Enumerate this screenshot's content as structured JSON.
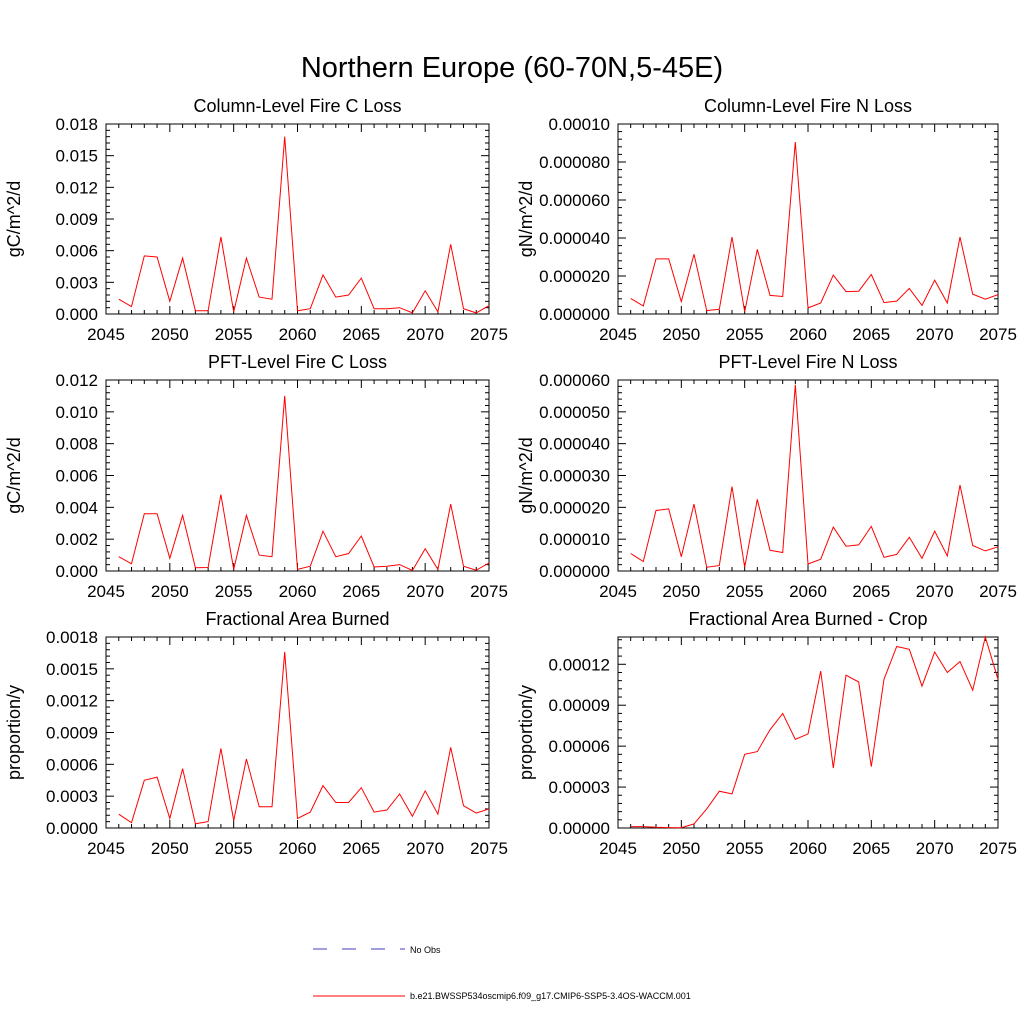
{
  "figure": {
    "title": "Northern Europe (60-70N,5-45E)"
  },
  "legend": {
    "entries": [
      {
        "label": "No Obs",
        "color": "#3f3fbf",
        "style": "dashed"
      },
      {
        "label": "b.e21.BWSSP534oscmip6.f09_g17.CMIP6-SSP5-3.4OS-WACCM.001",
        "color": "#ff0000",
        "style": "solid"
      }
    ]
  },
  "chart_data": [
    {
      "type": "line",
      "title": "Column-Level Fire C Loss",
      "ylabel": "gC/m^2/d",
      "xlim": [
        2045,
        2075
      ],
      "ylim": [
        0,
        0.018
      ],
      "xticks": [
        "2045",
        "2050",
        "2055",
        "2060",
        "2065",
        "2070",
        "2075"
      ],
      "yticks": [
        "0.000",
        "0.003",
        "0.006",
        "0.009",
        "0.012",
        "0.015",
        "0.018"
      ],
      "series": [
        {
          "color": "#ff0000",
          "x": [
            2046,
            2047,
            2048,
            2049,
            2050,
            2051,
            2052,
            2053,
            2054,
            2055,
            2056,
            2057,
            2058,
            2059,
            2060,
            2061,
            2062,
            2063,
            2064,
            2065,
            2066,
            2067,
            2068,
            2069,
            2070,
            2071,
            2072,
            2073,
            2074,
            2075
          ],
          "y": [
            0.0014,
            0.0007,
            0.0055,
            0.0054,
            0.0012,
            0.0053,
            0.0003,
            0.0003,
            0.0073,
            0.0002,
            0.0053,
            0.0016,
            0.0014,
            0.0168,
            0.0003,
            0.0005,
            0.0037,
            0.0016,
            0.0018,
            0.0034,
            0.0005,
            0.0005,
            0.0006,
            0.0001,
            0.0022,
            0.0002,
            0.0066,
            0.0005,
            0.0001,
            0.0008
          ]
        }
      ]
    },
    {
      "type": "line",
      "title": "Column-Level Fire N Loss",
      "ylabel": "gN/m^2/d",
      "xlim": [
        2045,
        2075
      ],
      "ylim": [
        0,
        0.0001
      ],
      "xticks": [
        "2045",
        "2050",
        "2055",
        "2060",
        "2065",
        "2070",
        "2075"
      ],
      "yticks": [
        "0.000000",
        "0.000020",
        "0.000040",
        "0.000060",
        "0.000080",
        "0.00010"
      ],
      "series": [
        {
          "color": "#ff0000",
          "x": [
            2046,
            2047,
            2048,
            2049,
            2050,
            2051,
            2052,
            2053,
            2054,
            2055,
            2056,
            2057,
            2058,
            2059,
            2060,
            2061,
            2062,
            2063,
            2064,
            2065,
            2066,
            2067,
            2068,
            2069,
            2070,
            2071,
            2072,
            2073,
            2074,
            2075
          ],
          "y": [
            8.2e-06,
            4.2e-06,
            2.9e-05,
            2.9e-05,
            6.5e-06,
            3.15e-05,
            1.8e-06,
            2.5e-06,
            4.05e-05,
            1.2e-06,
            3.4e-05,
            9.8e-06,
            9.2e-06,
            9.05e-05,
            3.2e-06,
            5.8e-06,
            2.05e-05,
            1.18e-05,
            1.2e-05,
            2.08e-05,
            6e-06,
            6.8e-06,
            1.35e-05,
            4.5e-06,
            1.78e-05,
            5.8e-06,
            4.05e-05,
            1.05e-05,
            7.8e-06,
            1.02e-05
          ]
        }
      ]
    },
    {
      "type": "line",
      "title": "PFT-Level Fire C Loss",
      "ylabel": "gC/m^2/d",
      "xlim": [
        2045,
        2075
      ],
      "ylim": [
        0,
        0.012
      ],
      "xticks": [
        "2045",
        "2050",
        "2055",
        "2060",
        "2065",
        "2070",
        "2075"
      ],
      "yticks": [
        "0.000",
        "0.002",
        "0.004",
        "0.006",
        "0.008",
        "0.010",
        "0.012"
      ],
      "series": [
        {
          "color": "#ff0000",
          "x": [
            2046,
            2047,
            2048,
            2049,
            2050,
            2051,
            2052,
            2053,
            2054,
            2055,
            2056,
            2057,
            2058,
            2059,
            2060,
            2061,
            2062,
            2063,
            2064,
            2065,
            2066,
            2067,
            2068,
            2069,
            2070,
            2071,
            2072,
            2073,
            2074,
            2075
          ],
          "y": [
            0.0009,
            0.00045,
            0.0036,
            0.0036,
            0.0008,
            0.0035,
            0.0002,
            0.00022,
            0.0048,
            0.0001,
            0.0035,
            0.001,
            0.0009,
            0.011,
            0.0001,
            0.0003,
            0.0025,
            0.0009,
            0.0011,
            0.0022,
            0.00025,
            0.0003,
            0.0004,
            3e-05,
            0.0014,
            0.0001,
            0.0042,
            0.0003,
            5e-05,
            0.0005
          ]
        }
      ]
    },
    {
      "type": "line",
      "title": "PFT-Level Fire N Loss",
      "ylabel": "gN/m^2/d",
      "xlim": [
        2045,
        2075
      ],
      "ylim": [
        0,
        6e-05
      ],
      "xticks": [
        "2045",
        "2050",
        "2055",
        "2060",
        "2065",
        "2070",
        "2075"
      ],
      "yticks": [
        "0.000000",
        "0.000010",
        "0.000020",
        "0.000030",
        "0.000040",
        "0.000050",
        "0.000060"
      ],
      "series": [
        {
          "color": "#ff0000",
          "x": [
            2046,
            2047,
            2048,
            2049,
            2050,
            2051,
            2052,
            2053,
            2054,
            2055,
            2056,
            2057,
            2058,
            2059,
            2060,
            2061,
            2062,
            2063,
            2064,
            2065,
            2066,
            2067,
            2068,
            2069,
            2070,
            2071,
            2072,
            2073,
            2074,
            2075
          ],
          "y": [
            5.5e-06,
            3e-06,
            1.9e-05,
            1.95e-05,
            4.5e-06,
            2.1e-05,
            1.2e-06,
            1.7e-06,
            2.65e-05,
            1.2e-06,
            2.25e-05,
            6.5e-06,
            5.8e-06,
            5.85e-05,
            2.2e-06,
            3.7e-06,
            1.38e-05,
            7.8e-06,
            8.2e-06,
            1.4e-05,
            4.3e-06,
            5.2e-06,
            1.06e-05,
            4e-06,
            1.25e-05,
            4.7e-06,
            2.7e-05,
            8e-06,
            6.3e-06,
            7.6e-06
          ]
        }
      ]
    },
    {
      "type": "line",
      "title": "Fractional Area Burned",
      "ylabel": "proportion/y",
      "xlim": [
        2045,
        2075
      ],
      "ylim": [
        0,
        0.0018
      ],
      "xticks": [
        "2045",
        "2050",
        "2055",
        "2060",
        "2065",
        "2070",
        "2075"
      ],
      "yticks": [
        "0.0000",
        "0.0003",
        "0.0006",
        "0.0009",
        "0.0012",
        "0.0015",
        "0.0018"
      ],
      "series": [
        {
          "color": "#ff0000",
          "x": [
            2046,
            2047,
            2048,
            2049,
            2050,
            2051,
            2052,
            2053,
            2054,
            2055,
            2056,
            2057,
            2058,
            2059,
            2060,
            2061,
            2062,
            2063,
            2064,
            2065,
            2066,
            2067,
            2068,
            2069,
            2070,
            2071,
            2072,
            2073,
            2074,
            2075
          ],
          "y": [
            0.00013,
            5e-05,
            0.00045,
            0.00048,
            9e-05,
            0.00056,
            4e-05,
            6e-05,
            0.00075,
            7e-05,
            0.00065,
            0.0002,
            0.0002,
            0.00166,
            9e-05,
            0.00015,
            0.0004,
            0.00024,
            0.00024,
            0.00038,
            0.00015,
            0.00017,
            0.00032,
            0.00011,
            0.00035,
            0.00013,
            0.00076,
            0.00021,
            0.00014,
            0.00018
          ]
        }
      ]
    },
    {
      "type": "line",
      "title": "Fractional Area Burned - Crop",
      "ylabel": "proportion/y",
      "xlim": [
        2045,
        2075
      ],
      "ylim": [
        0,
        0.00014
      ],
      "xticks": [
        "2045",
        "2050",
        "2055",
        "2060",
        "2065",
        "2070",
        "2075"
      ],
      "yticks": [
        "0.00000",
        "0.00003",
        "0.00006",
        "0.00009",
        "0.00012"
      ],
      "series": [
        {
          "color": "#ff0000",
          "x": [
            2046,
            2047,
            2048,
            2049,
            2050,
            2051,
            2052,
            2053,
            2054,
            2055,
            2056,
            2057,
            2058,
            2059,
            2060,
            2061,
            2062,
            2063,
            2064,
            2065,
            2066,
            2067,
            2068,
            2069,
            2070,
            2071,
            2072,
            2073,
            2074,
            2075
          ],
          "y": [
            1e-06,
            1e-06,
            5e-07,
            3e-07,
            2e-07,
            3e-06,
            1.4e-05,
            2.7e-05,
            2.5e-05,
            5.4e-05,
            5.6e-05,
            7.2e-05,
            8.4e-05,
            6.5e-05,
            6.9e-05,
            0.000115,
            4.4e-05,
            0.000112,
            0.000107,
            4.5e-05,
            0.000109,
            0.000133,
            0.000131,
            0.000104,
            0.000129,
            0.000114,
            0.000122,
            0.000101,
            0.00014,
            0.000109
          ]
        }
      ]
    }
  ]
}
